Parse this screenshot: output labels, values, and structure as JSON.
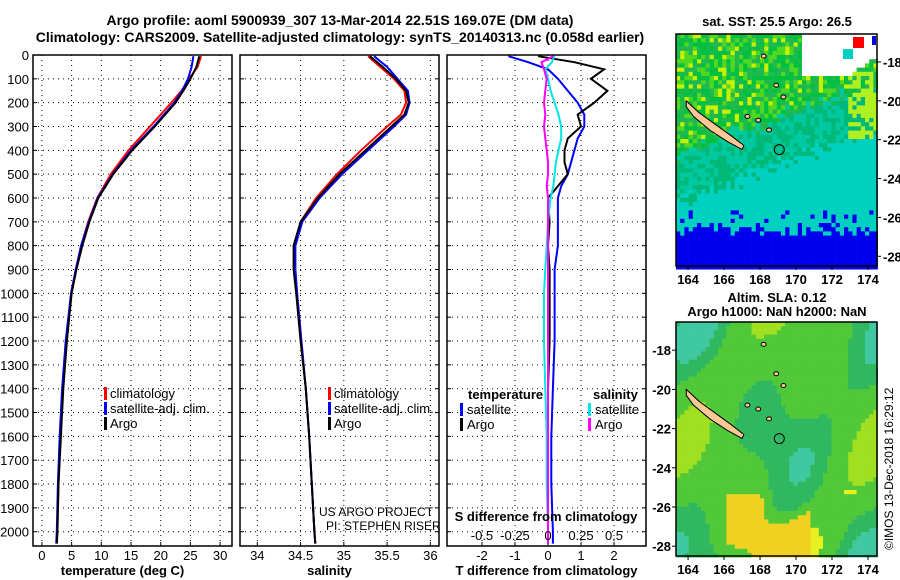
{
  "title_line1": "Argo profile: aoml 5900939_307 13-Mar-2014 22.51S 169.07E (DM data)",
  "title_line2": "Climatology: CARS2009. Satellite-adjusted climatology: synTS_20140313.nc (0.058d earlier)",
  "credit": "©IMOS 13-Dec-2018 16:29:12",
  "project_line1": "US ARGO PROJECT",
  "project_line2": "PI: STEPHEN RISER",
  "colors": {
    "climatology": "#ff0000",
    "satellite": "#0000ff",
    "argo": "#000000",
    "s_satellite": "#00e5e5",
    "s_argo": "#ff00ff",
    "island": "#fcc896"
  },
  "chart_data": [
    {
      "type": "line",
      "name": "temperature",
      "xlabel": "temperature (deg C)",
      "xlim": [
        -1.5,
        32
      ],
      "ylim": [
        2060,
        0
      ],
      "xticks": [
        "0",
        "5",
        "10",
        "15",
        "20",
        "25",
        "30"
      ],
      "xtick_values": [
        0,
        5,
        10,
        15,
        20,
        25,
        30
      ],
      "yticks": [
        "0",
        "100",
        "200",
        "300",
        "400",
        "500",
        "600",
        "700",
        "800",
        "900",
        "1000",
        "1100",
        "1200",
        "1300",
        "1400",
        "1500",
        "1600",
        "1700",
        "1800",
        "1900",
        "2000"
      ],
      "legend": [
        "climatology",
        "satellite-adj. clim.",
        "Argo"
      ],
      "depth": [
        5,
        50,
        100,
        150,
        200,
        300,
        400,
        500,
        600,
        700,
        800,
        900,
        1000,
        1200,
        1400,
        1600,
        1800,
        2000,
        2050
      ],
      "series": [
        {
          "name": "climatology",
          "color": "#ff0000",
          "values": [
            26.8,
            26.2,
            24.8,
            23.5,
            21.8,
            18.2,
            14.6,
            11.6,
            9.3,
            7.8,
            6.6,
            5.7,
            5.0,
            4.1,
            3.5,
            3.1,
            2.8,
            2.6,
            2.5
          ]
        },
        {
          "name": "satellite-adj. clim.",
          "color": "#0000ff",
          "values": [
            25.5,
            25.2,
            24.6,
            23.6,
            22.3,
            18.8,
            15.0,
            11.9,
            9.4,
            7.9,
            6.6,
            5.7,
            4.9,
            4.0,
            3.4,
            3.0,
            2.7,
            2.5,
            2.4
          ]
        },
        {
          "name": "Argo",
          "color": "#000000",
          "values": [
            26.5,
            26.0,
            25.0,
            23.8,
            22.5,
            19.0,
            15.2,
            12.0,
            9.5,
            8.0,
            6.8,
            5.8,
            5.0,
            4.2,
            3.6,
            3.2,
            2.8,
            2.6,
            2.5
          ]
        }
      ]
    },
    {
      "type": "line",
      "name": "salinity",
      "xlabel": "salinity",
      "xlim": [
        33.8,
        36.1
      ],
      "ylim": [
        2060,
        0
      ],
      "xticks": [
        "34",
        "34.5",
        "35",
        "35.5",
        "36"
      ],
      "xtick_values": [
        34,
        34.5,
        35,
        35.5,
        36
      ],
      "legend": [
        "climatology",
        "satellite-adj. clim.",
        "Argo"
      ],
      "depth": [
        5,
        50,
        100,
        150,
        200,
        250,
        300,
        400,
        500,
        600,
        700,
        800,
        900,
        1000,
        1200,
        1400,
        1600,
        1800,
        2000,
        2050
      ],
      "series": [
        {
          "name": "climatology",
          "color": "#ff0000",
          "values": [
            35.28,
            35.42,
            35.58,
            35.7,
            35.72,
            35.66,
            35.5,
            35.2,
            34.92,
            34.68,
            34.5,
            34.43,
            34.43,
            34.46,
            34.51,
            34.56,
            34.6,
            34.63,
            34.66,
            34.67
          ]
        },
        {
          "name": "satellite-adj. clim.",
          "color": "#0000ff",
          "values": [
            35.35,
            35.5,
            35.62,
            35.74,
            35.76,
            35.72,
            35.58,
            35.28,
            34.98,
            34.72,
            34.52,
            34.44,
            34.44,
            34.46,
            34.51,
            34.56,
            34.6,
            34.63,
            34.66,
            34.67
          ]
        },
        {
          "name": "Argo",
          "color": "#000000",
          "values": [
            35.3,
            35.45,
            35.6,
            35.72,
            35.75,
            35.7,
            35.55,
            35.25,
            34.95,
            34.7,
            34.5,
            34.42,
            34.42,
            34.45,
            34.5,
            34.56,
            34.6,
            34.63,
            34.66,
            34.67
          ]
        }
      ]
    },
    {
      "type": "line",
      "name": "differences",
      "xlabel": "T difference from climatology",
      "x2label": "S difference from climatology",
      "xlim": [
        -3.06,
        2.97
      ],
      "ylim": [
        2060,
        0
      ],
      "xticks": [
        "-2",
        "-1",
        "0",
        "1",
        "2"
      ],
      "xtick_values": [
        -2,
        -1,
        0,
        1,
        2
      ],
      "x2ticks": [
        "-0.5",
        "-0.25",
        "0",
        "0.25",
        "0.5"
      ],
      "x2tick_values": [
        -0.5,
        -0.25,
        0,
        0.25,
        0.5
      ],
      "legend_left_title": "temperature",
      "legend_right_title": "salinity",
      "legend_left": [
        "satellite",
        "Argo"
      ],
      "legend_right": [
        "satellite",
        "Argo"
      ],
      "depth": [
        5,
        30,
        60,
        100,
        150,
        200,
        250,
        300,
        350,
        400,
        450,
        500,
        550,
        600,
        700,
        800,
        900,
        1000,
        1200,
        1400,
        1600,
        1800,
        2000,
        2050
      ],
      "series": [
        {
          "name": "T satellite",
          "color": "#0000ff",
          "values": [
            -1.2,
            -0.6,
            0.0,
            0.3,
            0.6,
            0.9,
            1.1,
            1.1,
            0.9,
            0.8,
            0.7,
            0.6,
            0.4,
            0.3,
            0.3,
            0.3,
            0.2,
            0.2,
            0.2,
            0.15,
            0.1,
            0.1,
            0.15,
            0.15
          ]
        },
        {
          "name": "T Argo",
          "color": "#000000",
          "values": [
            -0.3,
            0.8,
            1.7,
            1.3,
            1.8,
            1.4,
            0.9,
            1.0,
            0.6,
            0.5,
            0.5,
            0.6,
            0.3,
            0.0,
            0.05,
            0.0,
            0.05,
            0.05,
            0.05,
            0.0,
            0.0,
            0.0,
            0.0,
            0.0
          ]
        },
        {
          "name": "S satellite",
          "color": "#00e5e5",
          "values": [
            0.05,
            0.03,
            -0.02,
            0.0,
            0.02,
            0.05,
            0.08,
            0.1,
            0.1,
            0.08,
            0.06,
            0.05,
            0.04,
            0.02,
            0.0,
            -0.01,
            -0.02,
            -0.03,
            -0.03,
            -0.02,
            -0.01,
            -0.01,
            0.0,
            0.0
          ]
        },
        {
          "name": "S Argo",
          "color": "#ff00ff",
          "values": [
            0.04,
            -0.05,
            -0.03,
            -0.01,
            -0.02,
            -0.03,
            -0.02,
            -0.03,
            -0.02,
            -0.01,
            0.0,
            0.0,
            -0.01,
            0.0,
            0.0,
            0.0,
            0.0,
            0.0,
            0.0,
            0.0,
            0.0,
            0.0,
            0.0,
            0.0
          ]
        }
      ]
    },
    {
      "type": "heatmap",
      "name": "sst-map",
      "title": "sat. SST: 25.5 Argo: 26.5",
      "xticks": [
        "164",
        "166",
        "168",
        "170",
        "172",
        "174"
      ],
      "yticks": [
        "-18",
        "-20",
        "-22",
        "-24",
        "-26",
        "-28"
      ],
      "profile_lon": 169.07,
      "profile_lat": -22.51
    },
    {
      "type": "heatmap",
      "name": "sla-map",
      "title1": "Altim. SLA: 0.12",
      "title2": "Argo h1000: NaN h2000: NaN",
      "xticks": [
        "164",
        "166",
        "168",
        "170",
        "172",
        "174"
      ],
      "yticks": [
        "-18",
        "-20",
        "-22",
        "-24",
        "-26",
        "-28"
      ],
      "profile_lon": 169.07,
      "profile_lat": -22.51
    }
  ]
}
